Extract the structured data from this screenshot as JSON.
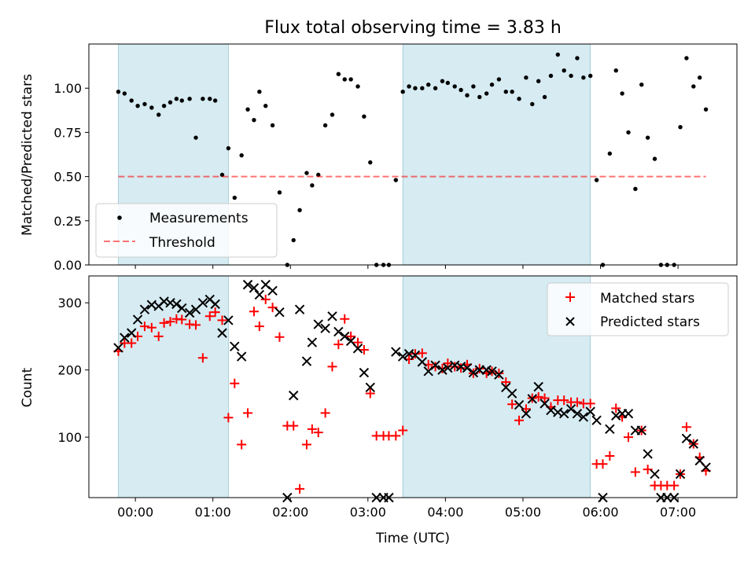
{
  "figure": {
    "title": "Flux total observing time = 3.83 h"
  },
  "colors": {
    "shade": "#add8e6",
    "threshold": "#ff0000",
    "matched": "#ff0000",
    "predicted": "#000000",
    "measurement": "#000000"
  },
  "chart_data": [
    {
      "type": "scatter",
      "panel": "top",
      "title": "Flux total observing time = 3.83 h",
      "xlabel": "",
      "ylabel": "Matched/Predicted stars",
      "xlim": [
        -0.97,
        7.76
      ],
      "ylim": [
        0,
        1.25
      ],
      "yticks": [
        0.0,
        0.25,
        0.5,
        0.75,
        1.0
      ],
      "ytick_labels": [
        "0.00",
        "0.25",
        "0.50",
        "0.75",
        "1.00"
      ],
      "xticks": [
        0,
        1,
        2,
        3,
        4,
        5,
        6,
        7
      ],
      "shaded_intervals": [
        [
          -0.22,
          1.2
        ],
        [
          3.45,
          5.87
        ]
      ],
      "legend": {
        "position": "lower-left",
        "entries": [
          "Measurements",
          "Threshold"
        ]
      },
      "series": [
        {
          "name": "Measurements",
          "marker": "dot",
          "x": [
            -0.22,
            -0.14,
            -0.05,
            0.03,
            0.12,
            0.21,
            0.3,
            0.37,
            0.45,
            0.53,
            0.6,
            0.7,
            0.78,
            0.87,
            0.96,
            1.03,
            1.12,
            1.2,
            1.28,
            1.37,
            1.45,
            1.53,
            1.6,
            1.68,
            1.77,
            1.86,
            1.96,
            2.04,
            2.12,
            2.21,
            2.28,
            2.36,
            2.45,
            2.54,
            2.62,
            2.7,
            2.78,
            2.87,
            2.95,
            3.03,
            3.11,
            3.2,
            3.27,
            3.36,
            3.45,
            3.53,
            3.61,
            3.7,
            3.78,
            3.87,
            3.96,
            4.03,
            4.12,
            4.2,
            4.28,
            4.36,
            4.44,
            4.53,
            4.6,
            4.69,
            4.78,
            4.86,
            4.95,
            5.04,
            5.12,
            5.2,
            5.28,
            5.36,
            5.45,
            5.53,
            5.62,
            5.7,
            5.78,
            5.87,
            5.95,
            6.03,
            6.12,
            6.2,
            6.28,
            6.36,
            6.45,
            6.53,
            6.61,
            6.7,
            6.78,
            6.86,
            6.95,
            7.03,
            7.11,
            7.2,
            7.28,
            7.36
          ],
          "y": [
            0.98,
            0.97,
            0.93,
            0.9,
            0.91,
            0.89,
            0.85,
            0.9,
            0.92,
            0.94,
            0.93,
            0.94,
            0.72,
            0.94,
            0.94,
            0.93,
            0.51,
            0.66,
            0.38,
            0.62,
            0.88,
            0.82,
            0.98,
            0.9,
            0.79,
            0.41,
            0.0,
            0.14,
            0.31,
            0.52,
            0.45,
            0.51,
            0.79,
            0.85,
            1.08,
            1.05,
            1.05,
            1.01,
            0.84,
            0.58,
            0.0,
            0.0,
            0.0,
            0.48,
            0.98,
            1.01,
            1.0,
            1.0,
            1.02,
            1.0,
            1.04,
            1.03,
            1.01,
            0.99,
            0.96,
            1.01,
            0.95,
            0.97,
            1.02,
            1.05,
            0.98,
            0.98,
            0.94,
            1.06,
            0.91,
            1.04,
            0.95,
            1.07,
            1.19,
            1.1,
            1.07,
            1.17,
            1.06,
            1.07,
            0.48,
            0.0,
            0.63,
            1.1,
            0.97,
            0.75,
            0.43,
            1.02,
            0.72,
            0.6,
            0.0,
            0.0,
            0.0,
            0.78,
            1.17,
            1.01,
            1.06,
            0.88
          ]
        },
        {
          "name": "Threshold",
          "marker": "dashed-line",
          "x": [
            -0.22,
            7.36
          ],
          "y": [
            0.5,
            0.5
          ]
        }
      ]
    },
    {
      "type": "scatter",
      "panel": "bottom",
      "title": "",
      "xlabel": "Time (UTC)",
      "ylabel": "Count",
      "xlim": [
        -0.6,
        7.76
      ],
      "ylim": [
        10,
        340
      ],
      "yticks": [
        100,
        200,
        300
      ],
      "ytick_labels": [
        "100",
        "200",
        "300"
      ],
      "xticks": [
        0,
        1,
        2,
        3,
        4,
        5,
        6,
        7
      ],
      "xtick_labels": [
        "00:00",
        "01:00",
        "02:00",
        "03:00",
        "04:00",
        "05:00",
        "06:00",
        "07:00"
      ],
      "shaded_intervals": [
        [
          -0.22,
          1.2
        ],
        [
          3.45,
          5.87
        ]
      ],
      "legend": {
        "position": "top-right",
        "entries": [
          "Matched stars",
          "Predicted stars"
        ]
      },
      "series": [
        {
          "name": "Matched stars",
          "marker": "plus",
          "x": [
            -0.22,
            -0.14,
            -0.05,
            0.03,
            0.12,
            0.21,
            0.3,
            0.37,
            0.45,
            0.53,
            0.6,
            0.7,
            0.78,
            0.87,
            0.96,
            1.03,
            1.12,
            1.2,
            1.28,
            1.37,
            1.45,
            1.53,
            1.6,
            1.68,
            1.77,
            1.86,
            1.96,
            2.04,
            2.12,
            2.21,
            2.28,
            2.36,
            2.45,
            2.54,
            2.62,
            2.7,
            2.78,
            2.87,
            2.95,
            3.03,
            3.11,
            3.2,
            3.27,
            3.36,
            3.45,
            3.53,
            3.61,
            3.7,
            3.78,
            3.87,
            3.96,
            4.03,
            4.12,
            4.2,
            4.28,
            4.36,
            4.44,
            4.53,
            4.6,
            4.69,
            4.78,
            4.86,
            4.95,
            5.04,
            5.12,
            5.2,
            5.28,
            5.36,
            5.45,
            5.53,
            5.62,
            5.7,
            5.78,
            5.87,
            5.95,
            6.03,
            6.12,
            6.2,
            6.28,
            6.36,
            6.45,
            6.53,
            6.61,
            6.7,
            6.78,
            6.86,
            6.95,
            7.03,
            7.11,
            7.2,
            7.28,
            7.36
          ],
          "y": [
            228,
            240,
            240,
            250,
            265,
            263,
            250,
            270,
            272,
            276,
            275,
            268,
            267,
            218,
            280,
            286,
            274,
            129,
            180,
            89,
            136,
            287,
            265,
            305,
            293,
            249,
            117,
            117,
            23,
            89,
            112,
            107,
            136,
            205,
            238,
            276,
            250,
            241,
            230,
            165,
            102,
            102,
            102,
            102,
            110,
            216,
            224,
            225,
            208,
            205,
            202,
            210,
            205,
            203,
            208,
            195,
            202,
            195,
            198,
            195,
            182,
            149,
            125,
            142,
            158,
            160,
            158,
            145,
            155,
            155,
            152,
            152,
            150,
            150,
            60,
            60,
            72,
            143,
            130,
            100,
            48,
            110,
            52,
            28,
            28,
            28,
            28,
            45,
            115,
            90,
            70,
            50
          ]
        },
        {
          "name": "Predicted stars",
          "marker": "x",
          "x": [
            -0.22,
            -0.14,
            -0.05,
            0.03,
            0.12,
            0.21,
            0.3,
            0.37,
            0.45,
            0.53,
            0.6,
            0.7,
            0.78,
            0.87,
            0.96,
            1.03,
            1.12,
            1.2,
            1.28,
            1.37,
            1.45,
            1.53,
            1.6,
            1.68,
            1.77,
            1.86,
            1.96,
            2.04,
            2.12,
            2.21,
            2.28,
            2.36,
            2.45,
            2.54,
            2.62,
            2.7,
            2.78,
            2.87,
            2.95,
            3.03,
            3.11,
            3.2,
            3.27,
            3.36,
            3.45,
            3.53,
            3.61,
            3.7,
            3.78,
            3.87,
            3.96,
            4.03,
            4.12,
            4.2,
            4.28,
            4.36,
            4.44,
            4.53,
            4.6,
            4.69,
            4.78,
            4.86,
            4.95,
            5.04,
            5.12,
            5.2,
            5.28,
            5.36,
            5.45,
            5.53,
            5.62,
            5.7,
            5.78,
            5.87,
            5.95,
            6.03,
            6.12,
            6.2,
            6.28,
            6.36,
            6.45,
            6.53,
            6.61,
            6.7,
            6.78,
            6.86,
            6.95,
            7.03,
            7.11,
            7.2,
            7.28,
            7.36
          ],
          "y": [
            233,
            248,
            255,
            275,
            290,
            297,
            295,
            302,
            300,
            298,
            292,
            285,
            290,
            300,
            305,
            298,
            255,
            274,
            235,
            220,
            327,
            322,
            312,
            327,
            318,
            286,
            0,
            162,
            290,
            213,
            241,
            268,
            262,
            280,
            257,
            250,
            243,
            232,
            196,
            174,
            0,
            0,
            0,
            227,
            220,
            224,
            222,
            212,
            198,
            207,
            200,
            203,
            207,
            205,
            203,
            196,
            200,
            200,
            198,
            193,
            174,
            165,
            148,
            135,
            157,
            175,
            150,
            140,
            137,
            135,
            142,
            135,
            130,
            138,
            125,
            0,
            112,
            132,
            135,
            135,
            110,
            110,
            75,
            45,
            0,
            0,
            0,
            45,
            98,
            90,
            65,
            55
          ]
        }
      ]
    }
  ]
}
